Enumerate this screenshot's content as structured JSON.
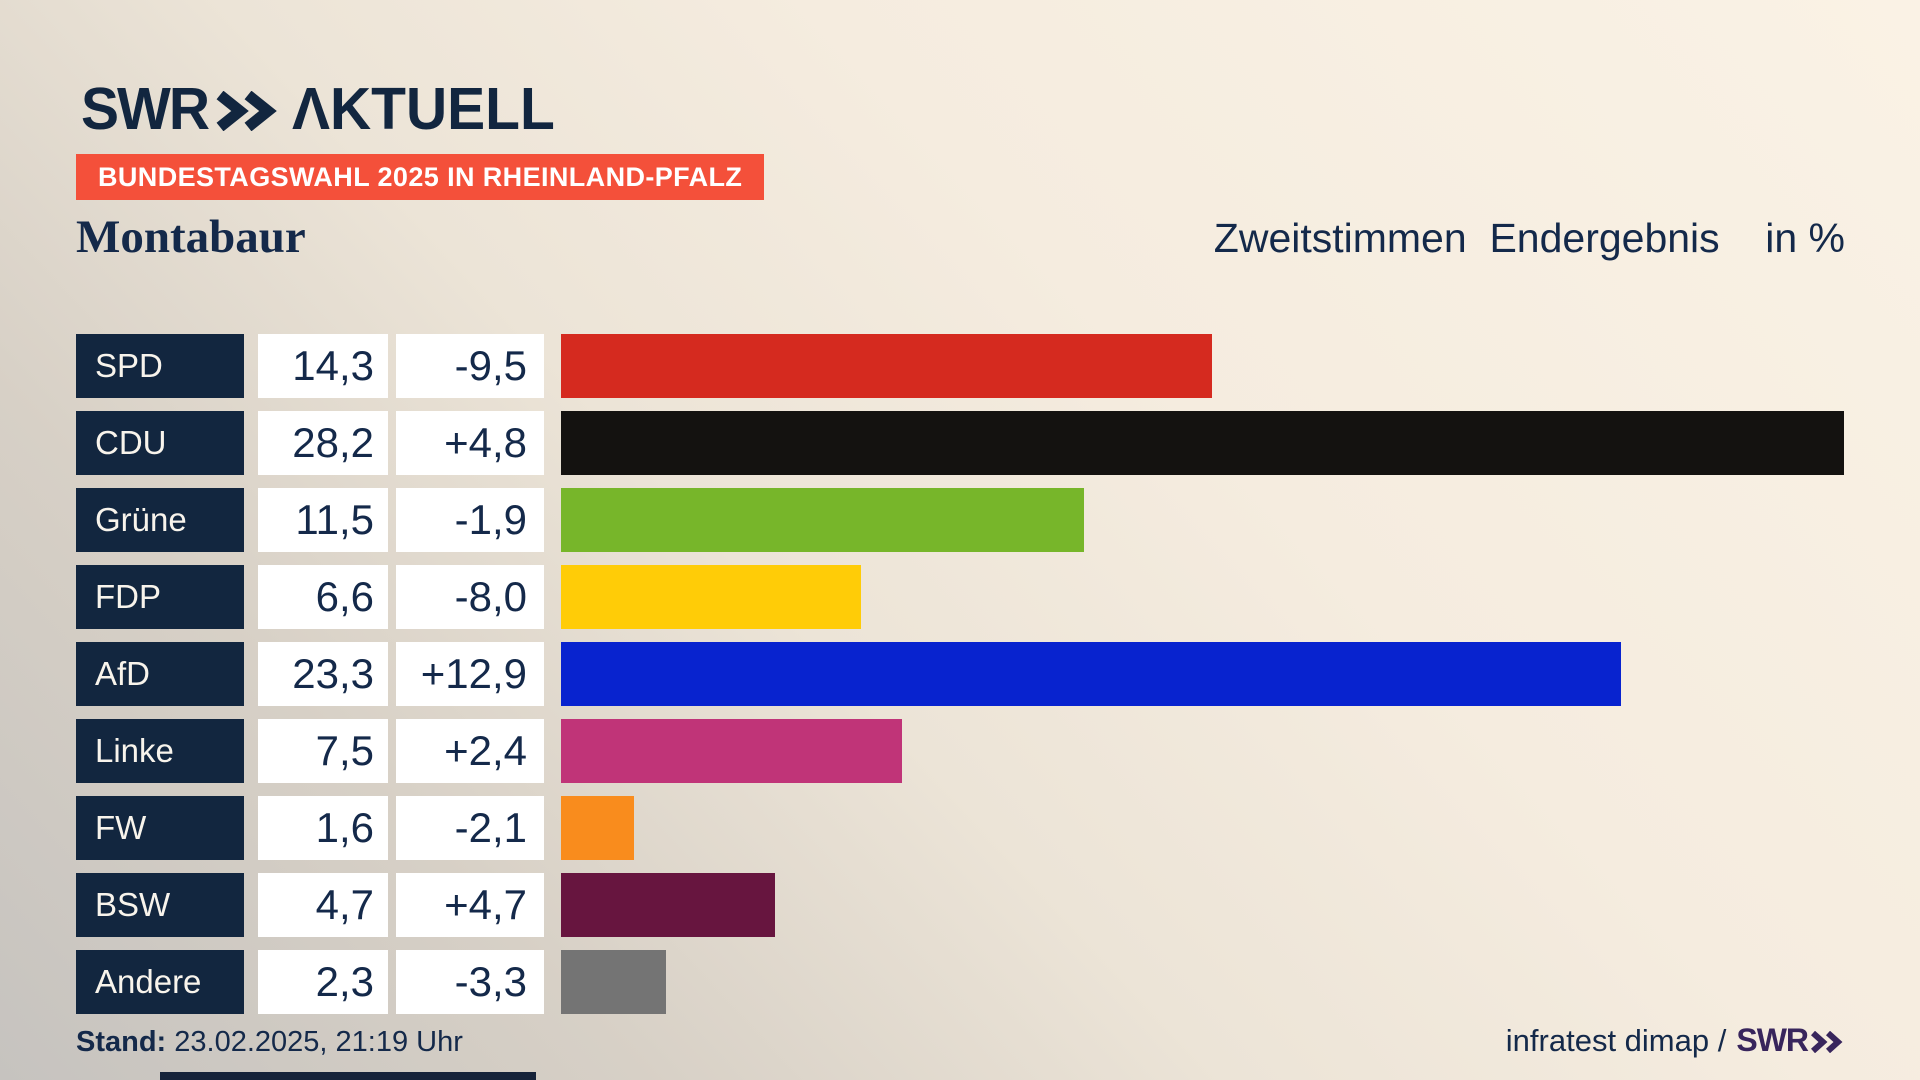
{
  "brand": {
    "logo_swr": "SWR",
    "logo_aktuell": "ΛKTUELL"
  },
  "badge": {
    "text": "BUNDESTAGSWAHL 2025 IN RHEINLAND-PFALZ",
    "bg": "#f4503a"
  },
  "header": {
    "region": "Montabaur",
    "title_right": "Zweitstimmen  Endergebnis    in %"
  },
  "chart_data": {
    "type": "bar",
    "orientation": "horizontal",
    "title": "Zweitstimmen Endergebnis in %",
    "subtitle": "Montabaur",
    "unit": "%",
    "xlim": [
      0,
      30
    ],
    "grid": false,
    "legend": false,
    "categories": [
      "SPD",
      "CDU",
      "Grüne",
      "FDP",
      "AfD",
      "Linke",
      "FW",
      "BSW",
      "Andere"
    ],
    "values": [
      14.3,
      28.2,
      11.5,
      6.6,
      23.3,
      7.5,
      1.6,
      4.7,
      2.3
    ],
    "changes": [
      -9.5,
      4.8,
      -1.9,
      -8.0,
      12.9,
      2.4,
      -2.1,
      4.7,
      -3.3
    ],
    "value_labels": [
      "14,3",
      "28,2",
      "11,5",
      "6,6",
      "23,3",
      "7,5",
      "1,6",
      "4,7",
      "2,3"
    ],
    "change_labels": [
      "-9,5",
      "+4,8",
      "-1,9",
      "-8,0",
      "+12,9",
      "+2,4",
      "-2,1",
      "+4,7",
      "-3,3"
    ],
    "bar_colors": [
      "#d52a1f",
      "#141210",
      "#77b62a",
      "#ffcc07",
      "#0823cf",
      "#c03478",
      "#f98c1d",
      "#67153f",
      "#747474"
    ],
    "label_box_color": "#12263f",
    "value_box_color": "#ffffff"
  },
  "footer": {
    "stand_label": "Stand:",
    "stand_value": " 23.02.2025, 21:19 Uhr",
    "source_text": "infratest dimap /",
    "source_logo": "SWR"
  }
}
